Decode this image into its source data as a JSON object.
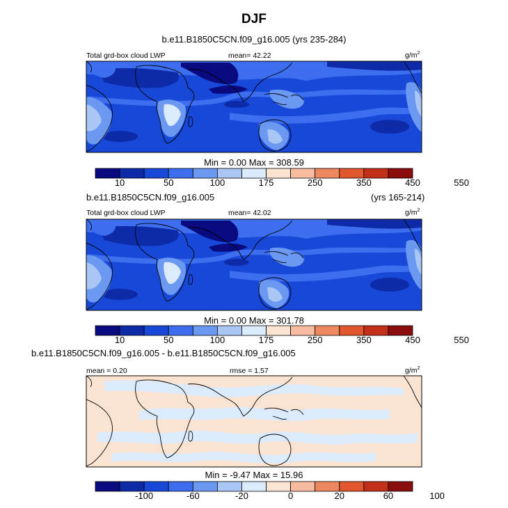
{
  "page": {
    "season": "DJF"
  },
  "chart_data": [
    {
      "type": "heatmap",
      "subtitle": "b.e11.B1850C5CN.f09_g16.005 (yrs 235-284)",
      "left_label": "Total grd-box cloud LWP",
      "center_label": "mean=  42.22",
      "units_label": "g/m",
      "units_exp": "2",
      "minmax": "Min =   0.00 Max = 308.59",
      "colorbar": {
        "levels": [
          "10",
          "50",
          "100",
          "175",
          "250",
          "350",
          "450",
          "550"
        ],
        "colors": [
          "#0a0a80",
          "#0d2aa8",
          "#1848d8",
          "#3d6ef0",
          "#6b99f2",
          "#a9c6f5",
          "#dcebfb",
          "#fbe3d1",
          "#f7bca0",
          "#ee8860",
          "#e2562e",
          "#c2301a",
          "#8a0e0e"
        ]
      }
    },
    {
      "type": "heatmap",
      "subtitle_left": "b.e11.B1850C5CN.f09_g16.005",
      "subtitle_right": "(yrs 165-214)",
      "left_label": "Total grd-box cloud LWP",
      "center_label": "mean=  42.02",
      "units_label": "g/m",
      "units_exp": "2",
      "minmax": "Min =   0.00 Max = 301.78",
      "colorbar": {
        "levels": [
          "10",
          "50",
          "100",
          "175",
          "250",
          "350",
          "450",
          "550"
        ],
        "colors": [
          "#0a0a80",
          "#0d2aa8",
          "#1848d8",
          "#3d6ef0",
          "#6b99f2",
          "#a9c6f5",
          "#dcebfb",
          "#fbe3d1",
          "#f7bca0",
          "#ee8860",
          "#e2562e",
          "#c2301a",
          "#8a0e0e"
        ]
      }
    },
    {
      "type": "heatmap",
      "subtitle": "b.e11.B1850C5CN.f09_g16.005 - b.e11.B1850C5CN.f09_g16.005",
      "left_label": "mean =   0.20",
      "center_label": "rmse =   1.57",
      "units_label": "g/m",
      "units_exp": "2",
      "minmax": "Min =  -9.47 Max =  15.96",
      "colorbar": {
        "levels": [
          "-100",
          "-60",
          "-20",
          "0",
          "20",
          "60",
          "100"
        ],
        "colors": [
          "#0a0a80",
          "#0d2aa8",
          "#1848d8",
          "#3d6ef0",
          "#6b99f2",
          "#a9c6f5",
          "#dcebfb",
          "#fbe3d1",
          "#f7bca0",
          "#ee8860",
          "#e2562e",
          "#c2301a",
          "#8a0e0e"
        ]
      }
    }
  ]
}
